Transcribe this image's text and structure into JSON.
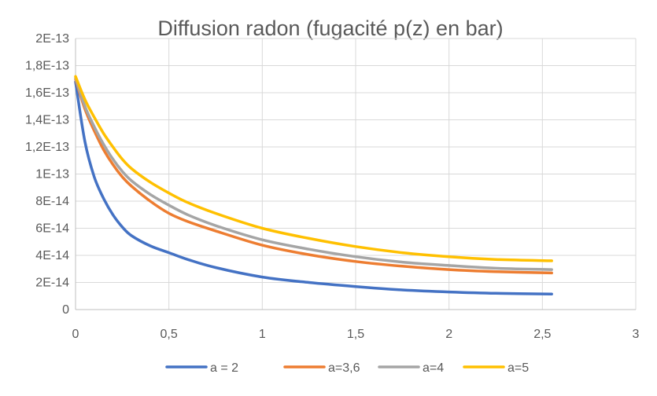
{
  "chart_data": {
    "type": "line",
    "title": "Diffusion radon (fugacité p(z) en bar)",
    "xlabel": "",
    "ylabel": "",
    "xlim": [
      0,
      3
    ],
    "ylim": [
      0,
      2e-13
    ],
    "x_ticks": [
      0,
      0.5,
      1,
      1.5,
      2,
      2.5,
      3
    ],
    "x_tick_labels": [
      "0",
      "0,5",
      "1",
      "1,5",
      "2",
      "2,5",
      "3"
    ],
    "y_ticks": [
      0,
      2e-14,
      4e-14,
      6e-14,
      8e-14,
      1e-13,
      1.2e-13,
      1.4e-13,
      1.6e-13,
      1.8e-13,
      2e-13
    ],
    "y_tick_labels": [
      "0",
      "2E-14",
      "4E-14",
      "6E-14",
      "8E-14",
      "1E-13",
      "1,2E-13",
      "1,4E-13",
      "1,6E-13",
      "1,8E-13",
      "2E-13"
    ],
    "grid": true,
    "legend_position": "bottom",
    "series": [
      {
        "name": "a = 2",
        "color": "#4472c4",
        "x": [
          0,
          0.05,
          0.1,
          0.15,
          0.2,
          0.25,
          0.3,
          0.4,
          0.5,
          0.6,
          0.75,
          1,
          1.25,
          1.5,
          1.75,
          2,
          2.25,
          2.55
        ],
        "y": [
          1.68e-13,
          1.24e-13,
          9.8e-14,
          8.2e-14,
          7e-14,
          6.1e-14,
          5.45e-14,
          4.7e-14,
          4.2e-14,
          3.7e-14,
          3.1e-14,
          2.4e-14,
          2e-14,
          1.7e-14,
          1.45e-14,
          1.3e-14,
          1.2e-14,
          1.15e-14
        ]
      },
      {
        "name": "a=3,6",
        "color": "#ed7d31",
        "x": [
          0,
          0.05,
          0.1,
          0.15,
          0.2,
          0.25,
          0.3,
          0.4,
          0.5,
          0.6,
          0.75,
          1,
          1.25,
          1.5,
          1.75,
          2,
          2.25,
          2.55
        ],
        "y": [
          1.7e-13,
          1.48e-13,
          1.32e-13,
          1.18e-13,
          1.07e-13,
          9.8e-14,
          9.1e-14,
          8e-14,
          7.1e-14,
          6.5e-14,
          5.8e-14,
          4.75e-14,
          4.05e-14,
          3.55e-14,
          3.2e-14,
          2.95e-14,
          2.8e-14,
          2.7e-14
        ]
      },
      {
        "name": "a=4",
        "color": "#a5a5a5",
        "x": [
          0,
          0.05,
          0.1,
          0.15,
          0.2,
          0.25,
          0.3,
          0.4,
          0.5,
          0.6,
          0.75,
          1,
          1.25,
          1.5,
          1.75,
          2,
          2.25,
          2.55
        ],
        "y": [
          1.71e-13,
          1.5e-13,
          1.35e-13,
          1.22e-13,
          1.11e-13,
          1.02e-13,
          9.5e-14,
          8.5e-14,
          7.7e-14,
          7e-14,
          6.2e-14,
          5.15e-14,
          4.45e-14,
          3.9e-14,
          3.5e-14,
          3.25e-14,
          3.05e-14,
          2.95e-14
        ]
      },
      {
        "name": "a=5",
        "color": "#ffc000",
        "x": [
          0,
          0.05,
          0.1,
          0.15,
          0.2,
          0.25,
          0.3,
          0.4,
          0.5,
          0.6,
          0.75,
          1,
          1.25,
          1.5,
          1.75,
          2,
          2.25,
          2.55
        ],
        "y": [
          1.72e-13,
          1.55e-13,
          1.42e-13,
          1.3e-13,
          1.2e-13,
          1.11e-13,
          1.04e-13,
          9.4e-14,
          8.6e-14,
          7.9e-14,
          7.1e-14,
          6e-14,
          5.25e-14,
          4.65e-14,
          4.2e-14,
          3.9e-14,
          3.7e-14,
          3.6e-14
        ]
      }
    ]
  }
}
